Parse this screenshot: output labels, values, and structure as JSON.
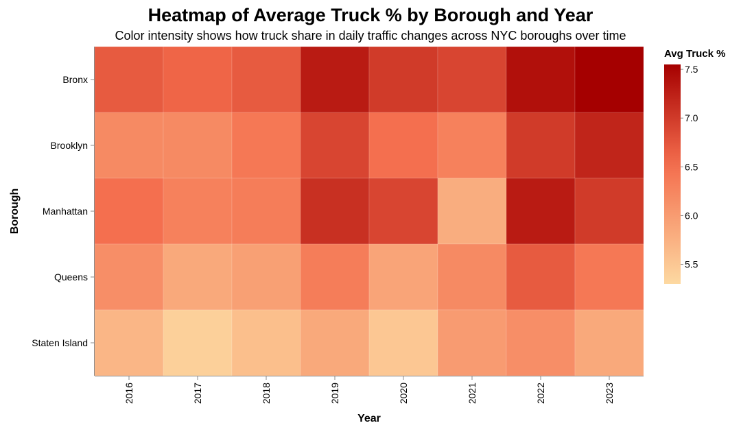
{
  "chart_data": {
    "type": "heatmap",
    "title": "Heatmap of Average Truck % by Borough and Year",
    "subtitle": "Color intensity shows how truck share in daily traffic changes across NYC boroughs over time",
    "xlabel": "Year",
    "ylabel": "Borough",
    "x": [
      "2016",
      "2017",
      "2018",
      "2019",
      "2020",
      "2021",
      "2022",
      "2023"
    ],
    "y": [
      "Bronx",
      "Brooklyn",
      "Manhattan",
      "Queens",
      "Staten Island"
    ],
    "values": [
      [
        6.7,
        6.6,
        6.7,
        7.3,
        7.0,
        6.9,
        7.4,
        7.55
      ],
      [
        6.2,
        6.2,
        6.4,
        6.9,
        6.5,
        6.3,
        7.0,
        7.2
      ],
      [
        6.5,
        6.3,
        6.35,
        7.1,
        6.9,
        5.8,
        7.3,
        7.0
      ],
      [
        6.15,
        5.85,
        5.95,
        6.35,
        5.9,
        6.2,
        6.7,
        6.4
      ],
      [
        5.7,
        5.4,
        5.6,
        5.85,
        5.5,
        6.0,
        6.15,
        5.85
      ]
    ],
    "legend": {
      "title": "Avg Truck %",
      "position": "right",
      "domain": [
        5.3,
        7.55
      ],
      "ticks": [
        "7.5",
        "7.0",
        "6.5",
        "6.0",
        "5.5"
      ],
      "color_low": "#fdd9a1",
      "color_mid": "#f46c4c",
      "color_high": "#a50000"
    },
    "grid": false
  }
}
